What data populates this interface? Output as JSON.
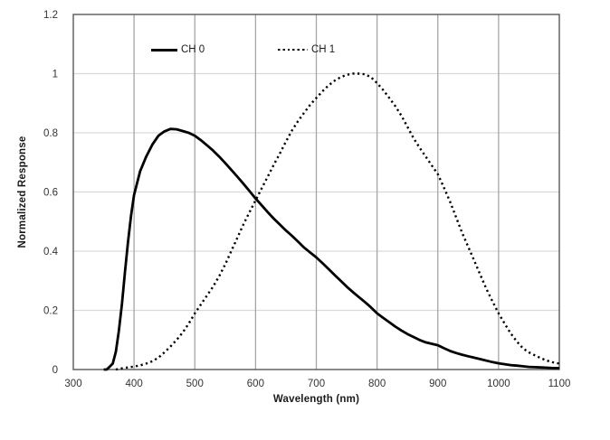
{
  "chart_data": {
    "type": "line",
    "title": "",
    "xlabel": "Wavelength (nm)",
    "ylabel": "Normalized Response",
    "xlim": [
      300,
      1100
    ],
    "ylim": [
      0,
      1.2
    ],
    "x_ticks": [
      300,
      400,
      500,
      600,
      700,
      800,
      900,
      1000,
      1100
    ],
    "y_ticks": [
      {
        "label": "0",
        "value": 0
      },
      {
        "label": "0.2",
        "value": 0.2
      },
      {
        "label": "0.4",
        "value": 0.4
      },
      {
        "label": "0.6",
        "value": 0.6
      },
      {
        "label": "0.8",
        "value": 0.8
      },
      {
        "label": "1",
        "value": 1
      },
      {
        "label": "1.2",
        "value": 1.2
      }
    ],
    "grid": {
      "h_gridline_color": "#D9D9D9",
      "v_gridline_color": "#A6A6A6",
      "border_color": "#595959",
      "tick_label_color": "#333333"
    },
    "legend_position": "top-inside",
    "series": [
      {
        "name": "CH 0",
        "style": "solid",
        "color": "#000000",
        "points": [
          [
            350,
            0
          ],
          [
            355,
            0
          ],
          [
            360,
            0.01
          ],
          [
            365,
            0.02
          ],
          [
            370,
            0.06
          ],
          [
            375,
            0.13
          ],
          [
            380,
            0.22
          ],
          [
            385,
            0.33
          ],
          [
            390,
            0.43
          ],
          [
            395,
            0.52
          ],
          [
            400,
            0.59
          ],
          [
            410,
            0.67
          ],
          [
            420,
            0.72
          ],
          [
            430,
            0.76
          ],
          [
            440,
            0.79
          ],
          [
            450,
            0.805
          ],
          [
            460,
            0.813
          ],
          [
            470,
            0.812
          ],
          [
            480,
            0.806
          ],
          [
            490,
            0.8
          ],
          [
            500,
            0.79
          ],
          [
            510,
            0.775
          ],
          [
            520,
            0.758
          ],
          [
            530,
            0.74
          ],
          [
            540,
            0.72
          ],
          [
            550,
            0.698
          ],
          [
            560,
            0.675
          ],
          [
            570,
            0.652
          ],
          [
            580,
            0.628
          ],
          [
            590,
            0.603
          ],
          [
            600,
            0.578
          ],
          [
            610,
            0.555
          ],
          [
            620,
            0.532
          ],
          [
            630,
            0.51
          ],
          [
            640,
            0.49
          ],
          [
            650,
            0.47
          ],
          [
            660,
            0.452
          ],
          [
            670,
            0.432
          ],
          [
            680,
            0.412
          ],
          [
            690,
            0.395
          ],
          [
            700,
            0.379
          ],
          [
            710,
            0.36
          ],
          [
            720,
            0.34
          ],
          [
            730,
            0.32
          ],
          [
            740,
            0.3
          ],
          [
            750,
            0.28
          ],
          [
            760,
            0.262
          ],
          [
            770,
            0.245
          ],
          [
            780,
            0.228
          ],
          [
            790,
            0.21
          ],
          [
            800,
            0.19
          ],
          [
            810,
            0.175
          ],
          [
            820,
            0.16
          ],
          [
            830,
            0.145
          ],
          [
            840,
            0.132
          ],
          [
            850,
            0.12
          ],
          [
            860,
            0.11
          ],
          [
            870,
            0.1
          ],
          [
            880,
            0.092
          ],
          [
            890,
            0.087
          ],
          [
            900,
            0.082
          ],
          [
            910,
            0.072
          ],
          [
            920,
            0.063
          ],
          [
            930,
            0.056
          ],
          [
            940,
            0.05
          ],
          [
            950,
            0.045
          ],
          [
            960,
            0.04
          ],
          [
            970,
            0.035
          ],
          [
            980,
            0.03
          ],
          [
            990,
            0.025
          ],
          [
            1000,
            0.021
          ],
          [
            1010,
            0.018
          ],
          [
            1020,
            0.015
          ],
          [
            1030,
            0.013
          ],
          [
            1040,
            0.011
          ],
          [
            1050,
            0.009
          ],
          [
            1060,
            0.008
          ],
          [
            1070,
            0.007
          ],
          [
            1080,
            0.006
          ],
          [
            1090,
            0.005
          ],
          [
            1100,
            0.005
          ]
        ]
      },
      {
        "name": "CH 1",
        "style": "dotted",
        "color": "#000000",
        "points": [
          [
            370,
            0
          ],
          [
            380,
            0.004
          ],
          [
            390,
            0.007
          ],
          [
            400,
            0.01
          ],
          [
            410,
            0.014
          ],
          [
            420,
            0.02
          ],
          [
            430,
            0.028
          ],
          [
            440,
            0.04
          ],
          [
            450,
            0.058
          ],
          [
            460,
            0.078
          ],
          [
            470,
            0.1
          ],
          [
            480,
            0.125
          ],
          [
            490,
            0.155
          ],
          [
            500,
            0.19
          ],
          [
            510,
            0.22
          ],
          [
            520,
            0.25
          ],
          [
            530,
            0.28
          ],
          [
            540,
            0.315
          ],
          [
            550,
            0.355
          ],
          [
            560,
            0.4
          ],
          [
            570,
            0.445
          ],
          [
            580,
            0.49
          ],
          [
            590,
            0.532
          ],
          [
            600,
            0.572
          ],
          [
            610,
            0.612
          ],
          [
            620,
            0.652
          ],
          [
            630,
            0.692
          ],
          [
            640,
            0.73
          ],
          [
            650,
            0.77
          ],
          [
            660,
            0.808
          ],
          [
            670,
            0.84
          ],
          [
            680,
            0.868
          ],
          [
            690,
            0.895
          ],
          [
            700,
            0.918
          ],
          [
            710,
            0.94
          ],
          [
            720,
            0.96
          ],
          [
            730,
            0.976
          ],
          [
            740,
            0.988
          ],
          [
            750,
            0.996
          ],
          [
            760,
            1.0
          ],
          [
            770,
            1.0
          ],
          [
            780,
            0.998
          ],
          [
            790,
            0.988
          ],
          [
            800,
            0.968
          ],
          [
            810,
            0.945
          ],
          [
            820,
            0.918
          ],
          [
            830,
            0.89
          ],
          [
            840,
            0.858
          ],
          [
            850,
            0.82
          ],
          [
            860,
            0.782
          ],
          [
            870,
            0.75
          ],
          [
            880,
            0.72
          ],
          [
            890,
            0.69
          ],
          [
            900,
            0.66
          ],
          [
            910,
            0.615
          ],
          [
            920,
            0.568
          ],
          [
            930,
            0.515
          ],
          [
            940,
            0.462
          ],
          [
            950,
            0.415
          ],
          [
            960,
            0.368
          ],
          [
            970,
            0.32
          ],
          [
            980,
            0.272
          ],
          [
            990,
            0.23
          ],
          [
            1000,
            0.19
          ],
          [
            1010,
            0.155
          ],
          [
            1020,
            0.122
          ],
          [
            1030,
            0.095
          ],
          [
            1040,
            0.072
          ],
          [
            1050,
            0.058
          ],
          [
            1060,
            0.048
          ],
          [
            1070,
            0.038
          ],
          [
            1080,
            0.03
          ],
          [
            1090,
            0.024
          ],
          [
            1100,
            0.02
          ]
        ]
      }
    ]
  }
}
